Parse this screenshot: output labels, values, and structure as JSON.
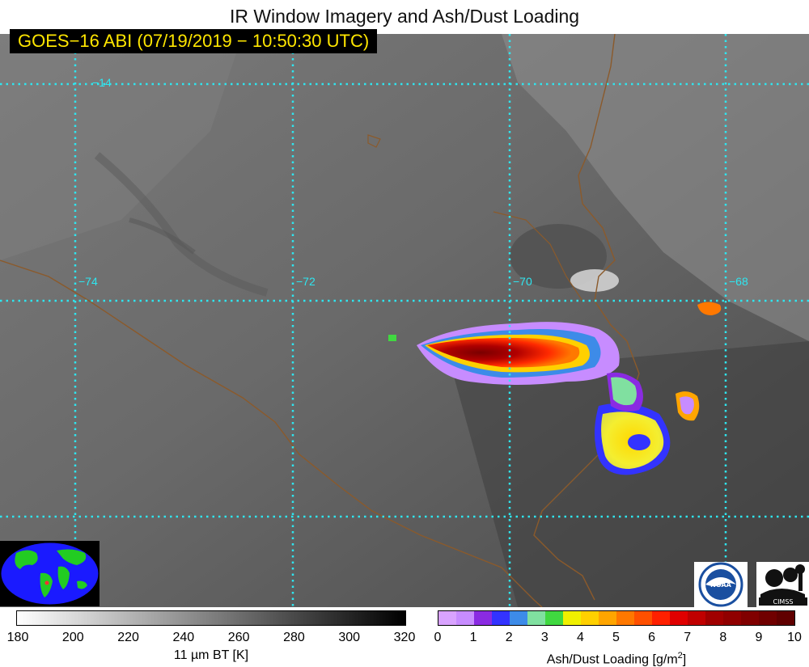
{
  "title": "IR Window Imagery and Ash/Dust Loading",
  "timestamp": "GOES−16 ABI (07/19/2019 − 10:50:30 UTC)",
  "grid": {
    "lat_label": "−14",
    "lon_labels": [
      "−74",
      "−72",
      "−70",
      "−68"
    ]
  },
  "ir_colorbar": {
    "ticks": [
      "180",
      "200",
      "220",
      "240",
      "260",
      "280",
      "300",
      "320"
    ],
    "label": "11 µm BT [K]",
    "range": [
      180,
      320
    ]
  },
  "ash_colorbar": {
    "ticks": [
      "0",
      "1",
      "2",
      "3",
      "4",
      "5",
      "6",
      "7",
      "8",
      "9",
      "10"
    ],
    "label_main": "Ash/Dust Loading [g/m",
    "label_sup": "2",
    "label_end": "]",
    "range": [
      0,
      10
    ],
    "colors": [
      "#d9a3ff",
      "#c78cff",
      "#8a2be2",
      "#3333ff",
      "#3d8be8",
      "#80e0a0",
      "#40d840",
      "#f0f000",
      "#ffd000",
      "#ffa500",
      "#ff7800",
      "#ff5000",
      "#ff2000",
      "#e00000",
      "#c00000",
      "#a00000",
      "#900000",
      "#800000",
      "#700000",
      "#600000"
    ]
  },
  "logos": {
    "noaa": "NOAA",
    "cimss": "CIMSS"
  }
}
